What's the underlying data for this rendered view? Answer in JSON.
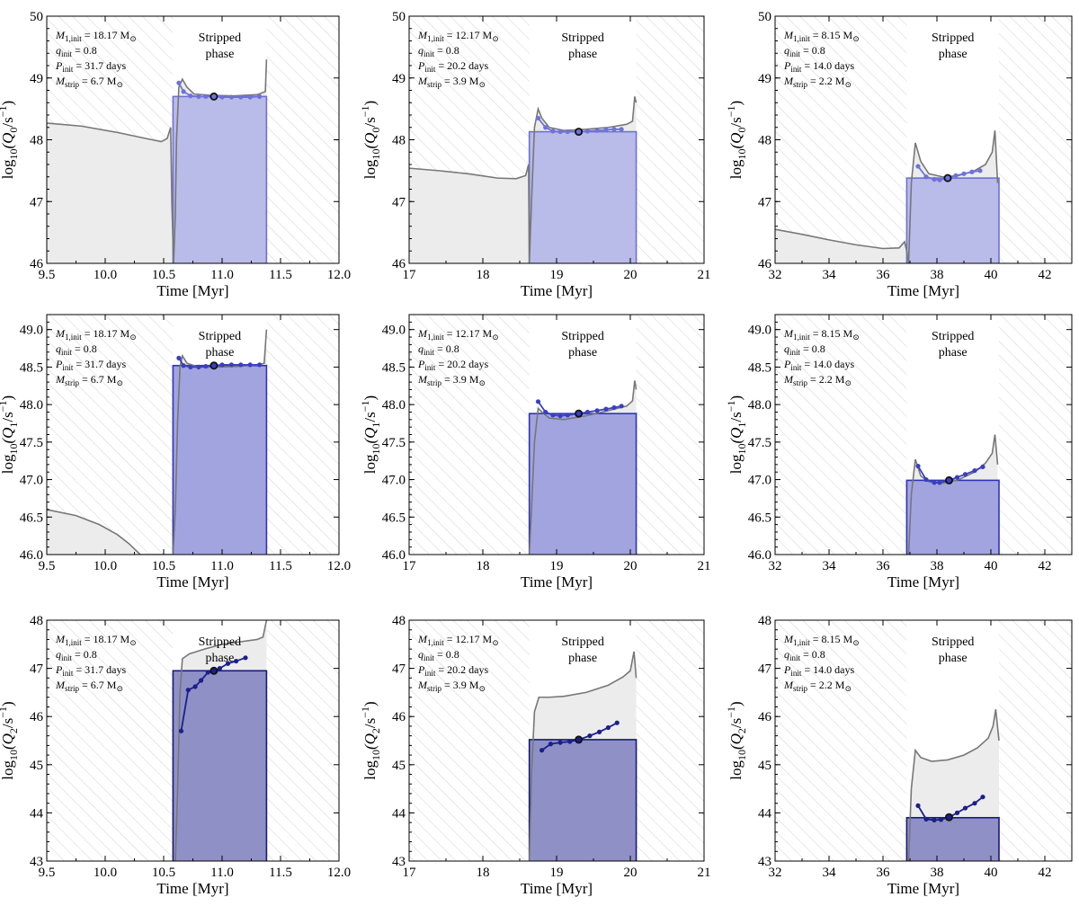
{
  "figure": {
    "description_free": true,
    "phase_label_line1": "Stripped",
    "phase_label_line2": "phase",
    "xlabel": "Time [Myr]",
    "colors": {
      "hatch": "#d4d4d4",
      "model_fill": "#ececec",
      "model_line": "#777777",
      "q0_bar": "#b9bbe8",
      "q0_edge": "#6d70d6",
      "q0_points": "#6f72d8",
      "q1_bar": "#a2a4e0",
      "q1_edge": "#2f33b6",
      "q1_points": "#3a3fc0",
      "q2_bar": "#8f90c6",
      "q2_edge": "#17197a",
      "q2_points": "#1b1f8a"
    }
  },
  "chart_data": [
    {
      "id": "p00",
      "type": "line",
      "ylabel": "log10(Q0/s^-1)",
      "species": "0",
      "xlim": [
        9.5,
        12.0
      ],
      "ylim": [
        46,
        50
      ],
      "xticks": [
        "9.5",
        "10.0",
        "10.5",
        "11.0",
        "11.5",
        "12.0"
      ],
      "yticks": [
        "46",
        "47",
        "48",
        "49",
        "50"
      ],
      "strip_start": 10.58,
      "strip_end": 11.38,
      "bar_value": 48.7,
      "marker_time": 10.93,
      "annotation": [
        "M_1,init = 18.17 M_sun",
        "q_init = 0.8",
        "P_init = 31.7 days",
        "M_strip = 6.7 M_sun"
      ],
      "model_curve": [
        [
          9.5,
          48.27
        ],
        [
          9.8,
          48.22
        ],
        [
          10.1,
          48.12
        ],
        [
          10.35,
          48.02
        ],
        [
          10.48,
          47.97
        ],
        [
          10.53,
          48.02
        ],
        [
          10.56,
          48.2
        ],
        [
          10.57,
          47.0
        ],
        [
          10.585,
          46.0
        ],
        [
          10.6,
          46.8
        ],
        [
          10.61,
          48.0
        ],
        [
          10.63,
          48.85
        ],
        [
          10.66,
          48.98
        ],
        [
          10.7,
          48.85
        ],
        [
          10.76,
          48.74
        ],
        [
          10.9,
          48.72
        ],
        [
          11.1,
          48.71
        ],
        [
          11.3,
          48.73
        ],
        [
          11.37,
          48.78
        ],
        [
          11.38,
          49.3
        ]
      ],
      "points": [
        [
          10.63,
          48.92
        ],
        [
          10.67,
          48.78
        ],
        [
          10.73,
          48.71
        ],
        [
          10.8,
          48.7
        ],
        [
          10.86,
          48.7
        ],
        [
          10.93,
          48.7
        ],
        [
          11.0,
          48.69
        ],
        [
          11.08,
          48.69
        ],
        [
          11.16,
          48.69
        ],
        [
          11.24,
          48.69
        ],
        [
          11.32,
          48.7
        ]
      ]
    },
    {
      "id": "p01",
      "type": "line",
      "ylabel": "log10(Q0/s^-1)",
      "species": "0",
      "xlim": [
        17,
        21
      ],
      "ylim": [
        46,
        50
      ],
      "xticks": [
        "17",
        "18",
        "19",
        "20",
        "21"
      ],
      "yticks": [
        "46",
        "47",
        "48",
        "49",
        "50"
      ],
      "strip_start": 18.63,
      "strip_end": 20.08,
      "bar_value": 48.13,
      "marker_time": 19.3,
      "annotation": [
        "M_1,init = 12.17 M_sun",
        "q_init = 0.8",
        "P_init = 20.2 days",
        "M_strip = 3.9 M_sun"
      ],
      "model_curve": [
        [
          17,
          47.54
        ],
        [
          17.4,
          47.5
        ],
        [
          17.8,
          47.45
        ],
        [
          18.2,
          47.38
        ],
        [
          18.45,
          47.37
        ],
        [
          18.58,
          47.42
        ],
        [
          18.62,
          47.6
        ],
        [
          18.63,
          46.0
        ],
        [
          18.66,
          47.0
        ],
        [
          18.7,
          48.2
        ],
        [
          18.75,
          48.5
        ],
        [
          18.8,
          48.35
        ],
        [
          18.9,
          48.2
        ],
        [
          19.1,
          48.15
        ],
        [
          19.4,
          48.17
        ],
        [
          19.7,
          48.2
        ],
        [
          19.95,
          48.25
        ],
        [
          20.03,
          48.3
        ],
        [
          20.06,
          48.7
        ],
        [
          20.08,
          48.6
        ]
      ],
      "points": [
        [
          18.75,
          48.35
        ],
        [
          18.85,
          48.2
        ],
        [
          18.95,
          48.14
        ],
        [
          19.05,
          48.13
        ],
        [
          19.15,
          48.13
        ],
        [
          19.3,
          48.13
        ],
        [
          19.42,
          48.14
        ],
        [
          19.55,
          48.15
        ],
        [
          19.67,
          48.16
        ],
        [
          19.78,
          48.17
        ],
        [
          19.88,
          48.17
        ]
      ]
    },
    {
      "id": "p02",
      "type": "line",
      "ylabel": "log10(Q0/s^-1)",
      "species": "0",
      "xlim": [
        32,
        43
      ],
      "ylim": [
        46,
        50
      ],
      "xticks": [
        "32",
        "34",
        "36",
        "38",
        "40",
        "42"
      ],
      "yticks": [
        "46",
        "47",
        "48",
        "49",
        "50"
      ],
      "strip_start": 36.88,
      "strip_end": 40.3,
      "bar_value": 47.38,
      "marker_time": 38.4,
      "annotation": [
        "M_1,init = 8.15 M_sun",
        "q_init = 0.8",
        "P_init = 14.0 days",
        "M_strip = 2.2 M_sun"
      ],
      "model_curve": [
        [
          32,
          46.55
        ],
        [
          33,
          46.47
        ],
        [
          34,
          46.38
        ],
        [
          35,
          46.3
        ],
        [
          36,
          46.24
        ],
        [
          36.6,
          46.25
        ],
        [
          36.8,
          46.35
        ],
        [
          36.88,
          46.2
        ],
        [
          36.95,
          46.0
        ],
        [
          37.05,
          47.3
        ],
        [
          37.2,
          47.95
        ],
        [
          37.4,
          47.65
        ],
        [
          37.7,
          47.45
        ],
        [
          38.2,
          47.4
        ],
        [
          38.8,
          47.42
        ],
        [
          39.4,
          47.5
        ],
        [
          39.8,
          47.6
        ],
        [
          40.05,
          47.8
        ],
        [
          40.15,
          48.15
        ],
        [
          40.25,
          47.3
        ]
      ],
      "points": [
        [
          37.3,
          47.57
        ],
        [
          37.6,
          47.4
        ],
        [
          37.9,
          47.36
        ],
        [
          38.1,
          47.35
        ],
        [
          38.4,
          47.38
        ],
        [
          38.7,
          47.42
        ],
        [
          39.0,
          47.45
        ],
        [
          39.3,
          47.48
        ],
        [
          39.6,
          47.5
        ]
      ]
    },
    {
      "id": "p10",
      "type": "line",
      "ylabel": "log10(Q1/s^-1)",
      "species": "1",
      "xlim": [
        9.5,
        12.0
      ],
      "ylim": [
        46,
        49.2
      ],
      "xticks": [
        "9.5",
        "10.0",
        "10.5",
        "11.0",
        "11.5",
        "12.0"
      ],
      "yticks": [
        "46.0",
        "46.5",
        "47.0",
        "47.5",
        "48.0",
        "48.5",
        "49.0"
      ],
      "strip_start": 10.58,
      "strip_end": 11.38,
      "bar_value": 48.52,
      "marker_time": 10.93,
      "annotation": [
        "M_1,init = 18.17 M_sun",
        "q_init = 0.8",
        "P_init = 31.7 days",
        "M_strip = 6.7 M_sun"
      ],
      "model_curve": [
        [
          9.5,
          46.6
        ],
        [
          9.75,
          46.52
        ],
        [
          9.95,
          46.4
        ],
        [
          10.1,
          46.27
        ],
        [
          10.2,
          46.15
        ],
        [
          10.3,
          46.0
        ],
        [
          10.58,
          46.0
        ],
        [
          10.6,
          46.6
        ],
        [
          10.62,
          47.8
        ],
        [
          10.64,
          48.5
        ],
        [
          10.66,
          48.65
        ],
        [
          10.7,
          48.55
        ],
        [
          10.8,
          48.5
        ],
        [
          10.95,
          48.5
        ],
        [
          11.15,
          48.51
        ],
        [
          11.3,
          48.53
        ],
        [
          11.36,
          48.55
        ],
        [
          11.38,
          49.0
        ]
      ],
      "points": [
        [
          10.63,
          48.62
        ],
        [
          10.67,
          48.52
        ],
        [
          10.73,
          48.5
        ],
        [
          10.8,
          48.5
        ],
        [
          10.86,
          48.51
        ],
        [
          10.93,
          48.52
        ],
        [
          11.0,
          48.53
        ],
        [
          11.08,
          48.53
        ],
        [
          11.16,
          48.53
        ],
        [
          11.24,
          48.53
        ],
        [
          11.32,
          48.53
        ]
      ]
    },
    {
      "id": "p11",
      "type": "line",
      "ylabel": "log10(Q1/s^-1)",
      "species": "1",
      "xlim": [
        17,
        21
      ],
      "ylim": [
        46,
        49.2
      ],
      "xticks": [
        "17",
        "18",
        "19",
        "20",
        "21"
      ],
      "yticks": [
        "46.0",
        "46.5",
        "47.0",
        "47.5",
        "48.0",
        "48.5",
        "49.0"
      ],
      "strip_start": 18.63,
      "strip_end": 20.08,
      "bar_value": 47.88,
      "marker_time": 19.3,
      "annotation": [
        "M_1,init = 12.17 M_sun",
        "q_init = 0.8",
        "P_init = 20.2 days",
        "M_strip = 3.9 M_sun"
      ],
      "model_curve": [
        [
          18.63,
          46.0
        ],
        [
          18.66,
          46.6
        ],
        [
          18.7,
          47.5
        ],
        [
          18.75,
          47.95
        ],
        [
          18.8,
          47.9
        ],
        [
          18.9,
          47.82
        ],
        [
          19.1,
          47.8
        ],
        [
          19.4,
          47.85
        ],
        [
          19.7,
          47.92
        ],
        [
          19.95,
          47.98
        ],
        [
          20.03,
          48.05
        ],
        [
          20.06,
          48.32
        ],
        [
          20.08,
          48.2
        ]
      ],
      "points": [
        [
          18.75,
          48.04
        ],
        [
          18.85,
          47.9
        ],
        [
          18.95,
          47.86
        ],
        [
          19.05,
          47.85
        ],
        [
          19.15,
          47.86
        ],
        [
          19.3,
          47.88
        ],
        [
          19.42,
          47.9
        ],
        [
          19.55,
          47.92
        ],
        [
          19.67,
          47.94
        ],
        [
          19.78,
          47.96
        ],
        [
          19.88,
          47.98
        ]
      ]
    },
    {
      "id": "p12",
      "type": "line",
      "ylabel": "log10(Q1/s^-1)",
      "species": "1",
      "xlim": [
        32,
        43
      ],
      "ylim": [
        46,
        49.2
      ],
      "xticks": [
        "32",
        "34",
        "36",
        "38",
        "40",
        "42"
      ],
      "yticks": [
        "46.0",
        "46.5",
        "47.0",
        "47.5",
        "48.0",
        "48.5",
        "49.0"
      ],
      "strip_start": 36.88,
      "strip_end": 40.3,
      "bar_value": 46.99,
      "marker_time": 38.45,
      "annotation": [
        "M_1,init = 8.15 M_sun",
        "q_init = 0.8",
        "P_init = 14.0 days",
        "M_strip = 2.2 M_sun"
      ],
      "model_curve": [
        [
          36.95,
          46.0
        ],
        [
          37.05,
          46.8
        ],
        [
          37.2,
          47.27
        ],
        [
          37.4,
          47.05
        ],
        [
          37.7,
          46.97
        ],
        [
          38.2,
          46.95
        ],
        [
          38.8,
          47.0
        ],
        [
          39.4,
          47.1
        ],
        [
          39.8,
          47.22
        ],
        [
          40.05,
          47.35
        ],
        [
          40.15,
          47.6
        ],
        [
          40.25,
          47.2
        ]
      ],
      "points": [
        [
          37.3,
          47.18
        ],
        [
          37.6,
          47.0
        ],
        [
          37.9,
          46.96
        ],
        [
          38.1,
          46.96
        ],
        [
          38.45,
          46.99
        ],
        [
          38.75,
          47.03
        ],
        [
          39.05,
          47.07
        ],
        [
          39.4,
          47.12
        ],
        [
          39.7,
          47.17
        ]
      ]
    },
    {
      "id": "p20",
      "type": "line",
      "ylabel": "log10(Q2/s^-1)",
      "species": "2",
      "xlim": [
        9.5,
        12.0
      ],
      "ylim": [
        43,
        48
      ],
      "xticks": [
        "9.5",
        "10.0",
        "10.5",
        "11.0",
        "11.5",
        "12.0"
      ],
      "yticks": [
        "43",
        "44",
        "45",
        "46",
        "47",
        "48"
      ],
      "strip_start": 10.58,
      "strip_end": 11.38,
      "bar_value": 46.95,
      "marker_time": 10.93,
      "annotation": [
        "M_1,init = 18.17 M_sun",
        "q_init = 0.8",
        "P_init = 31.7 days",
        "M_strip = 6.7 M_sun"
      ],
      "model_curve": [
        [
          10.6,
          43.0
        ],
        [
          10.62,
          44.5
        ],
        [
          10.64,
          46.5
        ],
        [
          10.66,
          47.2
        ],
        [
          10.72,
          47.3
        ],
        [
          10.85,
          47.4
        ],
        [
          11.0,
          47.5
        ],
        [
          11.15,
          47.55
        ],
        [
          11.3,
          47.6
        ],
        [
          11.35,
          47.65
        ],
        [
          11.38,
          48.0
        ]
      ],
      "points": [
        [
          10.65,
          45.7
        ],
        [
          10.71,
          46.55
        ],
        [
          10.77,
          46.62
        ],
        [
          10.82,
          46.75
        ],
        [
          10.88,
          46.92
        ],
        [
          10.93,
          46.95
        ],
        [
          10.98,
          47.0
        ],
        [
          11.05,
          47.1
        ],
        [
          11.12,
          47.15
        ],
        [
          11.2,
          47.22
        ]
      ]
    },
    {
      "id": "p21",
      "type": "line",
      "ylabel": "log10(Q2/s^-1)",
      "species": "2",
      "xlim": [
        17,
        21
      ],
      "ylim": [
        43,
        48
      ],
      "xticks": [
        "17",
        "18",
        "19",
        "20",
        "21"
      ],
      "yticks": [
        "43",
        "44",
        "45",
        "46",
        "47",
        "48"
      ],
      "strip_start": 18.63,
      "strip_end": 20.08,
      "bar_value": 45.52,
      "marker_time": 19.3,
      "annotation": [
        "M_1,init = 12.17 M_sun",
        "q_init = 0.8",
        "P_init = 20.2 days",
        "M_strip = 3.9 M_sun"
      ],
      "model_curve": [
        [
          18.63,
          43.0
        ],
        [
          18.66,
          44.8
        ],
        [
          18.7,
          46.1
        ],
        [
          18.76,
          46.4
        ],
        [
          18.9,
          46.4
        ],
        [
          19.1,
          46.42
        ],
        [
          19.4,
          46.5
        ],
        [
          19.7,
          46.65
        ],
        [
          19.9,
          46.82
        ],
        [
          20.0,
          46.95
        ],
        [
          20.05,
          47.35
        ],
        [
          20.08,
          46.8
        ]
      ],
      "points": [
        [
          18.8,
          45.3
        ],
        [
          18.92,
          45.43
        ],
        [
          19.05,
          45.46
        ],
        [
          19.18,
          45.48
        ],
        [
          19.3,
          45.52
        ],
        [
          19.45,
          45.6
        ],
        [
          19.58,
          45.68
        ],
        [
          19.7,
          45.77
        ],
        [
          19.82,
          45.87
        ]
      ]
    },
    {
      "id": "p22",
      "type": "line",
      "ylabel": "log10(Q2/s^-1)",
      "species": "2",
      "xlim": [
        32,
        43
      ],
      "ylim": [
        43,
        48
      ],
      "xticks": [
        "32",
        "34",
        "36",
        "38",
        "40",
        "42"
      ],
      "yticks": [
        "43",
        "44",
        "45",
        "46",
        "47",
        "48"
      ],
      "strip_start": 36.88,
      "strip_end": 40.3,
      "bar_value": 43.9,
      "marker_time": 38.45,
      "annotation": [
        "M_1,init = 8.15 M_sun",
        "q_init = 0.8",
        "P_init = 14.0 days",
        "M_strip = 2.2 M_sun"
      ],
      "model_curve": [
        [
          36.95,
          43.0
        ],
        [
          37.05,
          44.5
        ],
        [
          37.2,
          45.3
        ],
        [
          37.4,
          45.15
        ],
        [
          37.8,
          45.07
        ],
        [
          38.4,
          45.1
        ],
        [
          39.0,
          45.2
        ],
        [
          39.5,
          45.35
        ],
        [
          39.9,
          45.55
        ],
        [
          40.08,
          45.8
        ],
        [
          40.18,
          46.15
        ],
        [
          40.3,
          45.5
        ]
      ],
      "points": [
        [
          37.3,
          44.15
        ],
        [
          37.6,
          43.87
        ],
        [
          37.9,
          43.85
        ],
        [
          38.15,
          43.86
        ],
        [
          38.45,
          43.91
        ],
        [
          38.75,
          44.0
        ],
        [
          39.05,
          44.1
        ],
        [
          39.4,
          44.2
        ],
        [
          39.7,
          44.33
        ]
      ]
    }
  ]
}
